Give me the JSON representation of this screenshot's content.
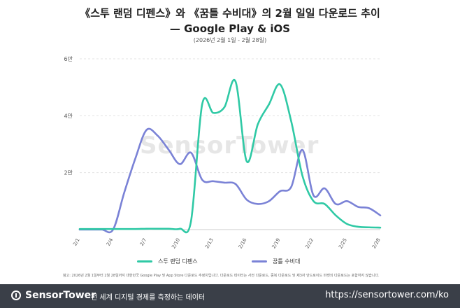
{
  "header": {
    "title_line1": "《스투 랜덤 디펜스》와 《꿈틀 수비대》의 2월 일일 다운로드 추이",
    "title_line2": "— Google Play & iOS",
    "subtitle": "(2026년 2월 1일 - 2월 28일)"
  },
  "watermark": "SensorTower",
  "chart_data": {
    "type": "line",
    "x": [
      "2/1",
      "2/2",
      "2/3",
      "2/4",
      "2/5",
      "2/6",
      "2/7",
      "2/8",
      "2/9",
      "2/10",
      "2/11",
      "2/12",
      "2/13",
      "2/14",
      "2/15",
      "2/16",
      "2/17",
      "2/18",
      "2/19",
      "2/20",
      "2/21",
      "2/22",
      "2/23",
      "2/24",
      "2/25",
      "2/26",
      "2/27",
      "2/28"
    ],
    "x_ticks": [
      "2/1",
      "2/4",
      "2/7",
      "2/10",
      "2/13",
      "2/16",
      "2/19",
      "2/22",
      "2/25",
      "2/28"
    ],
    "y_ticks": [
      {
        "value": 0,
        "label": ""
      },
      {
        "value": 20000,
        "label": "2만"
      },
      {
        "value": 40000,
        "label": "4만"
      },
      {
        "value": 60000,
        "label": "6만"
      }
    ],
    "ylim": [
      0,
      60000
    ],
    "grid": true,
    "legend_position": "bottom",
    "series": [
      {
        "name": "스투 랜덤 디펜스",
        "color": "#2fc9a5",
        "values": [
          200,
          200,
          200,
          200,
          200,
          200,
          300,
          300,
          300,
          300,
          3000,
          44000,
          41000,
          43000,
          52000,
          24000,
          37000,
          44000,
          51000,
          38000,
          19000,
          10000,
          9000,
          5000,
          2000,
          1000,
          800,
          700
        ]
      },
      {
        "name": "꿈틀 수비대",
        "color": "#7a82d6",
        "values": [
          0,
          0,
          0,
          0,
          13000,
          25000,
          35000,
          33000,
          28000,
          23000,
          27000,
          17500,
          17000,
          16500,
          16000,
          10500,
          9000,
          10000,
          13500,
          15000,
          28000,
          12000,
          14500,
          9000,
          10000,
          8000,
          7500,
          5000
        ]
      }
    ]
  },
  "legend": {
    "item1": "스투 랜덤 디펜스",
    "item2": "꿈틀 수비대"
  },
  "note": "참고: 2026년 2월 1일부터 2월 28일까지 대한민국 Google Play 및 App Store 다운로드 추정치입니다. 다운로드 데이터는 사전 다운로드, 중복 다운로드 및 제3자 안드로이드 마켓의 다운로드는 포함하지 않습니다.",
  "footer": {
    "brand": "SensorTower",
    "tagline": "전 세계 디지털 경제를 측정하는 데이터",
    "url": "https://sensortower.com/ko"
  }
}
